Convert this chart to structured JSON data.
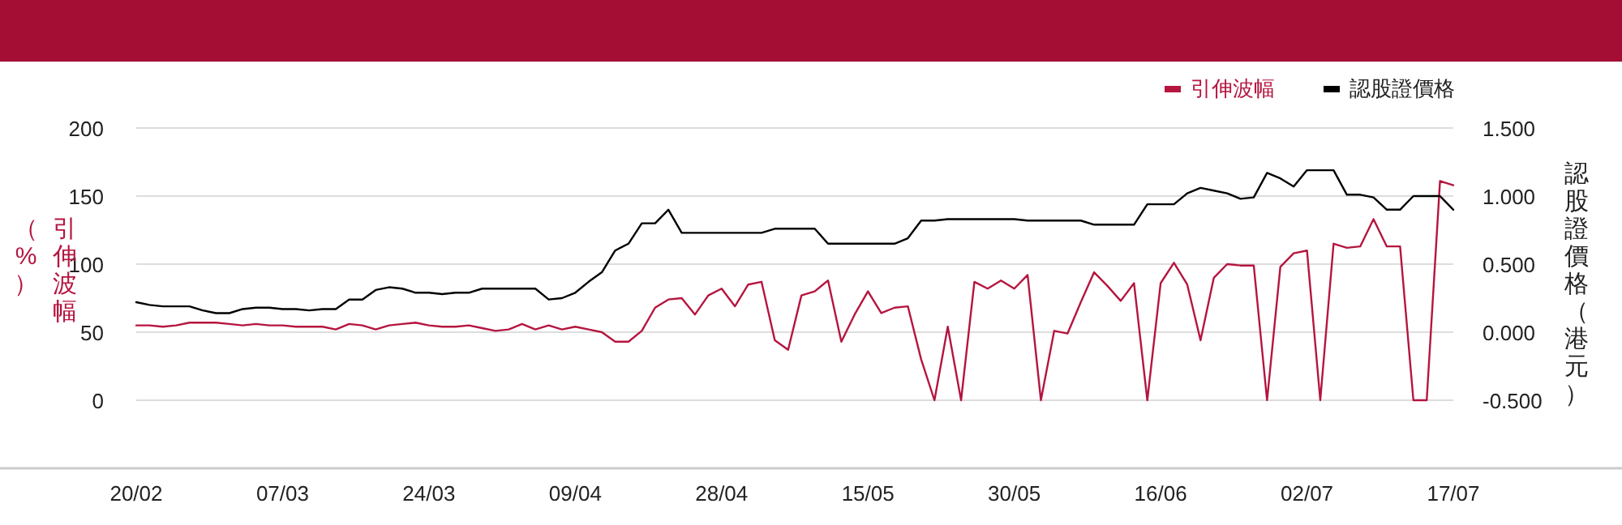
{
  "chart_data": {
    "type": "line",
    "categories": [
      "20/02",
      null,
      null,
      null,
      null,
      null,
      null,
      null,
      null,
      null,
      null,
      "07/03",
      null,
      null,
      null,
      null,
      null,
      null,
      null,
      null,
      null,
      null,
      "24/03",
      null,
      null,
      null,
      null,
      null,
      null,
      null,
      null,
      null,
      null,
      "09/04",
      null,
      null,
      null,
      null,
      null,
      null,
      null,
      null,
      null,
      null,
      "28/04",
      null,
      null,
      null,
      null,
      null,
      null,
      null,
      null,
      null,
      null,
      "15/05",
      null,
      null,
      null,
      null,
      null,
      null,
      null,
      null,
      null,
      null,
      "30/05",
      null,
      null,
      null,
      null,
      null,
      null,
      null,
      null,
      null,
      null,
      "16/06",
      null,
      null,
      null,
      null,
      null,
      null,
      null,
      null,
      null,
      null,
      "02/07",
      null,
      null,
      null,
      null,
      null,
      null,
      null,
      null,
      null,
      null,
      "17/07"
    ],
    "series": [
      {
        "name": "引伸波幅",
        "color": "#b5153f",
        "values": [
          55,
          55,
          54,
          55,
          57,
          57,
          57,
          56,
          55,
          56,
          55,
          55,
          54,
          54,
          54,
          52,
          56,
          55,
          52,
          55,
          56,
          57,
          55,
          54,
          54,
          55,
          53,
          51,
          52,
          56,
          52,
          55,
          52,
          54,
          52,
          50,
          43,
          43,
          51,
          68,
          74,
          75,
          63,
          77,
          82,
          69,
          85,
          87,
          44,
          37,
          77,
          80,
          88,
          43,
          63,
          80,
          64,
          68,
          69,
          30,
          0,
          54,
          0,
          87,
          82,
          88,
          82,
          92,
          0,
          51,
          49,
          72,
          94,
          84,
          73,
          86,
          0,
          86,
          101,
          85,
          44,
          90,
          100,
          99,
          99,
          0,
          98,
          108,
          110,
          0,
          115,
          112,
          113,
          133,
          113,
          113,
          0,
          0,
          161,
          158
        ]
      },
      {
        "name": "認股證價格",
        "color": "#000000",
        "axis": "y2",
        "values": [
          0.22,
          0.2,
          0.19,
          0.19,
          0.19,
          0.16,
          0.14,
          0.14,
          0.17,
          0.18,
          0.18,
          0.17,
          0.17,
          0.16,
          0.17,
          0.17,
          0.24,
          0.24,
          0.31,
          0.33,
          0.32,
          0.29,
          0.29,
          0.28,
          0.29,
          0.29,
          0.32,
          0.32,
          0.32,
          0.32,
          0.32,
          0.24,
          0.25,
          0.29,
          0.37,
          0.44,
          0.6,
          0.65,
          0.8,
          0.8,
          0.9,
          0.73,
          0.73,
          0.73,
          0.73,
          0.73,
          0.73,
          0.73,
          0.76,
          0.76,
          0.76,
          0.76,
          0.65,
          0.65,
          0.65,
          0.65,
          0.65,
          0.65,
          0.69,
          0.82,
          0.82,
          0.83,
          0.83,
          0.83,
          0.83,
          0.83,
          0.83,
          0.82,
          0.82,
          0.82,
          0.82,
          0.82,
          0.79,
          0.79,
          0.79,
          0.79,
          0.94,
          0.94,
          0.94,
          1.02,
          1.06,
          1.04,
          1.02,
          0.98,
          0.99,
          1.17,
          1.13,
          1.07,
          1.19,
          1.19,
          1.19,
          1.01,
          1.01,
          0.99,
          0.9,
          0.9,
          1.0,
          1.0,
          1.0,
          0.9
        ]
      }
    ],
    "ylabel": "引伸波幅（%）",
    "y2label": "認股證價格（港元）",
    "ylim": [
      -50,
      200
    ],
    "yticks": [
      0,
      50,
      100,
      150,
      200
    ],
    "y2lim": [
      -1,
      1.5
    ],
    "y2ticks": [
      {
        "value": -0.5,
        "label": "-0.500"
      },
      {
        "value": 0,
        "label": "0.000"
      },
      {
        "value": 0.5,
        "label": "0.500"
      },
      {
        "value": 1,
        "label": "1.000"
      },
      {
        "value": 1.5,
        "label": "1.500"
      }
    ],
    "grid": "y",
    "legend": "top right",
    "marker": "none",
    "line_style": "solid"
  }
}
